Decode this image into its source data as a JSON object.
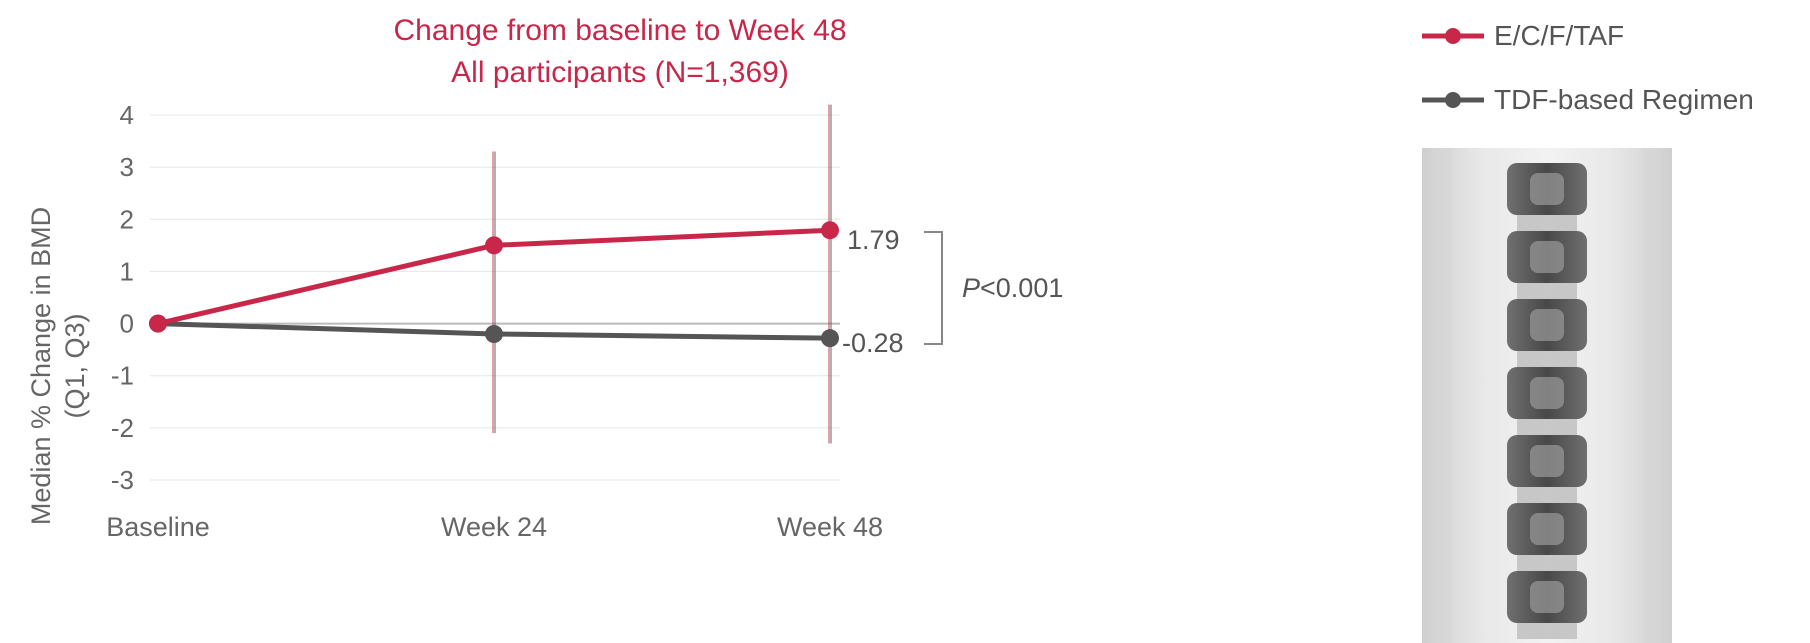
{
  "chart_data": {
    "type": "line",
    "title": "Change from baseline to Week 48",
    "subtitle": "All participants (N=1,369)",
    "ylabel_line1": "Median % Change in BMD",
    "ylabel_line2": "(Q1, Q3)",
    "xlabel": "",
    "categories": [
      "Baseline",
      "Week 24",
      "Week 48"
    ],
    "yticks": [
      "4",
      "3",
      "2",
      "1",
      "0",
      "-1",
      "-2",
      "-3"
    ],
    "ylim": [
      -3,
      4
    ],
    "grid": true,
    "legend_position": "top-right",
    "series": [
      {
        "name": "E/C/F/TAF",
        "color": "#c8274a",
        "values": [
          0,
          1.5,
          1.79
        ],
        "err_low": [
          0,
          -2.1,
          -2.3
        ],
        "err_high": [
          0,
          3.3,
          4.2
        ]
      },
      {
        "name": "TDF-based Regimen",
        "color": "#555555",
        "values": [
          0,
          -0.2,
          -0.28
        ],
        "err_low": [
          0,
          -2.1,
          -2.3
        ],
        "err_high": [
          0,
          3.3,
          4.2
        ]
      }
    ],
    "annotations": {
      "end_label_1": "1.79",
      "end_label_2": "-0.28",
      "pvalue_p": "P",
      "pvalue_rest": "<0.001"
    }
  },
  "image": {
    "icon": "spine-xray-image"
  }
}
